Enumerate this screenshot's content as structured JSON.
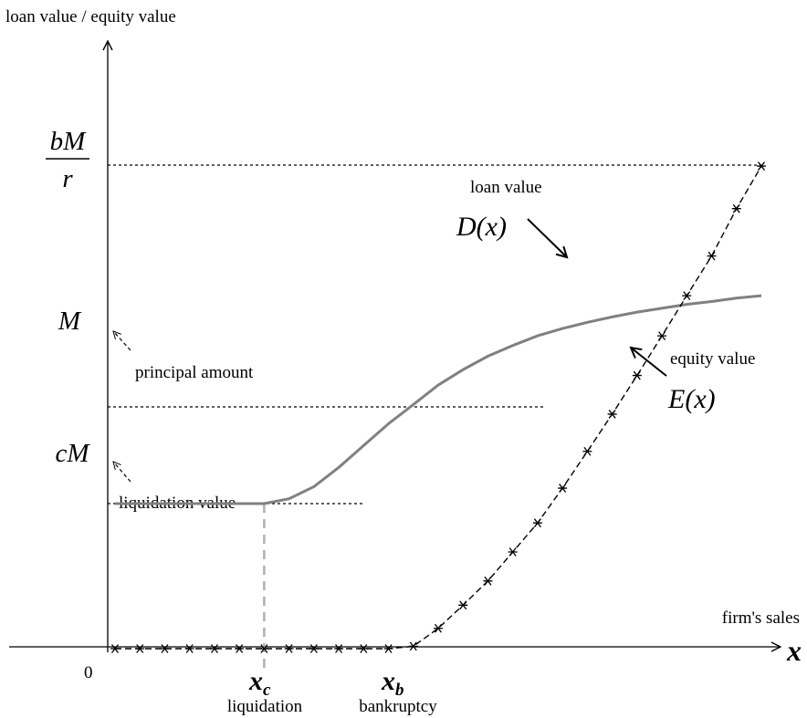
{
  "chart_data": {
    "type": "line",
    "title": "",
    "ylabel": "loan value / equity value",
    "xlabel": "firm's sales",
    "xaxis_symbol": "x",
    "origin_label": "0",
    "y_levels": {
      "bM_over_r": {
        "numerator": "bM",
        "denominator": "r",
        "value": 1.0
      },
      "M": {
        "label": "M",
        "value": 0.5,
        "annotation": "principal amount"
      },
      "cM": {
        "label": "cM",
        "value": 0.3,
        "annotation": "liquidation value"
      }
    },
    "x_markers": {
      "xc": {
        "label": "x",
        "subscript": "c",
        "caption": "liquidation",
        "value": 6
      },
      "xb": {
        "label": "x",
        "subscript": "b",
        "caption": "bankruptcy",
        "value": 12
      }
    },
    "xlim": [
      0,
      26
    ],
    "ylim": [
      -0.04,
      1.05
    ],
    "series": [
      {
        "name": "loan value",
        "formula": "D(x)",
        "style": "solid",
        "color": "#808080",
        "points": [
          [
            0,
            0.3
          ],
          [
            6,
            0.3
          ],
          [
            7,
            0.31
          ],
          [
            8,
            0.335
          ],
          [
            9,
            0.375
          ],
          [
            10,
            0.42
          ],
          [
            11,
            0.465
          ],
          [
            12,
            0.505
          ],
          [
            13,
            0.545
          ],
          [
            14,
            0.577
          ],
          [
            15,
            0.605
          ],
          [
            16,
            0.627
          ],
          [
            17,
            0.647
          ],
          [
            18,
            0.662
          ],
          [
            19,
            0.675
          ],
          [
            20,
            0.686
          ],
          [
            21,
            0.696
          ],
          [
            22,
            0.704
          ],
          [
            23,
            0.712
          ],
          [
            24,
            0.718
          ],
          [
            25,
            0.725
          ],
          [
            26,
            0.73
          ]
        ]
      },
      {
        "name": "equity value",
        "formula": "E(x)",
        "style": "dashed",
        "color": "#000000",
        "marker": "asterisk",
        "points": [
          [
            0,
            0
          ],
          [
            1,
            0
          ],
          [
            2,
            0
          ],
          [
            3,
            0
          ],
          [
            4,
            0
          ],
          [
            5,
            0
          ],
          [
            6,
            0
          ],
          [
            7,
            0
          ],
          [
            8,
            0
          ],
          [
            9,
            0
          ],
          [
            10,
            0
          ],
          [
            11,
            0
          ],
          [
            12,
            0.005
          ],
          [
            13,
            0.042
          ],
          [
            14,
            0.09
          ],
          [
            15,
            0.14
          ],
          [
            16,
            0.2
          ],
          [
            17,
            0.26
          ],
          [
            18,
            0.332
          ],
          [
            19,
            0.408
          ],
          [
            20,
            0.485
          ],
          [
            21,
            0.565
          ],
          [
            22,
            0.647
          ],
          [
            23,
            0.73
          ],
          [
            24,
            0.812
          ],
          [
            25,
            0.91
          ],
          [
            26,
            0.998
          ]
        ]
      }
    ]
  }
}
